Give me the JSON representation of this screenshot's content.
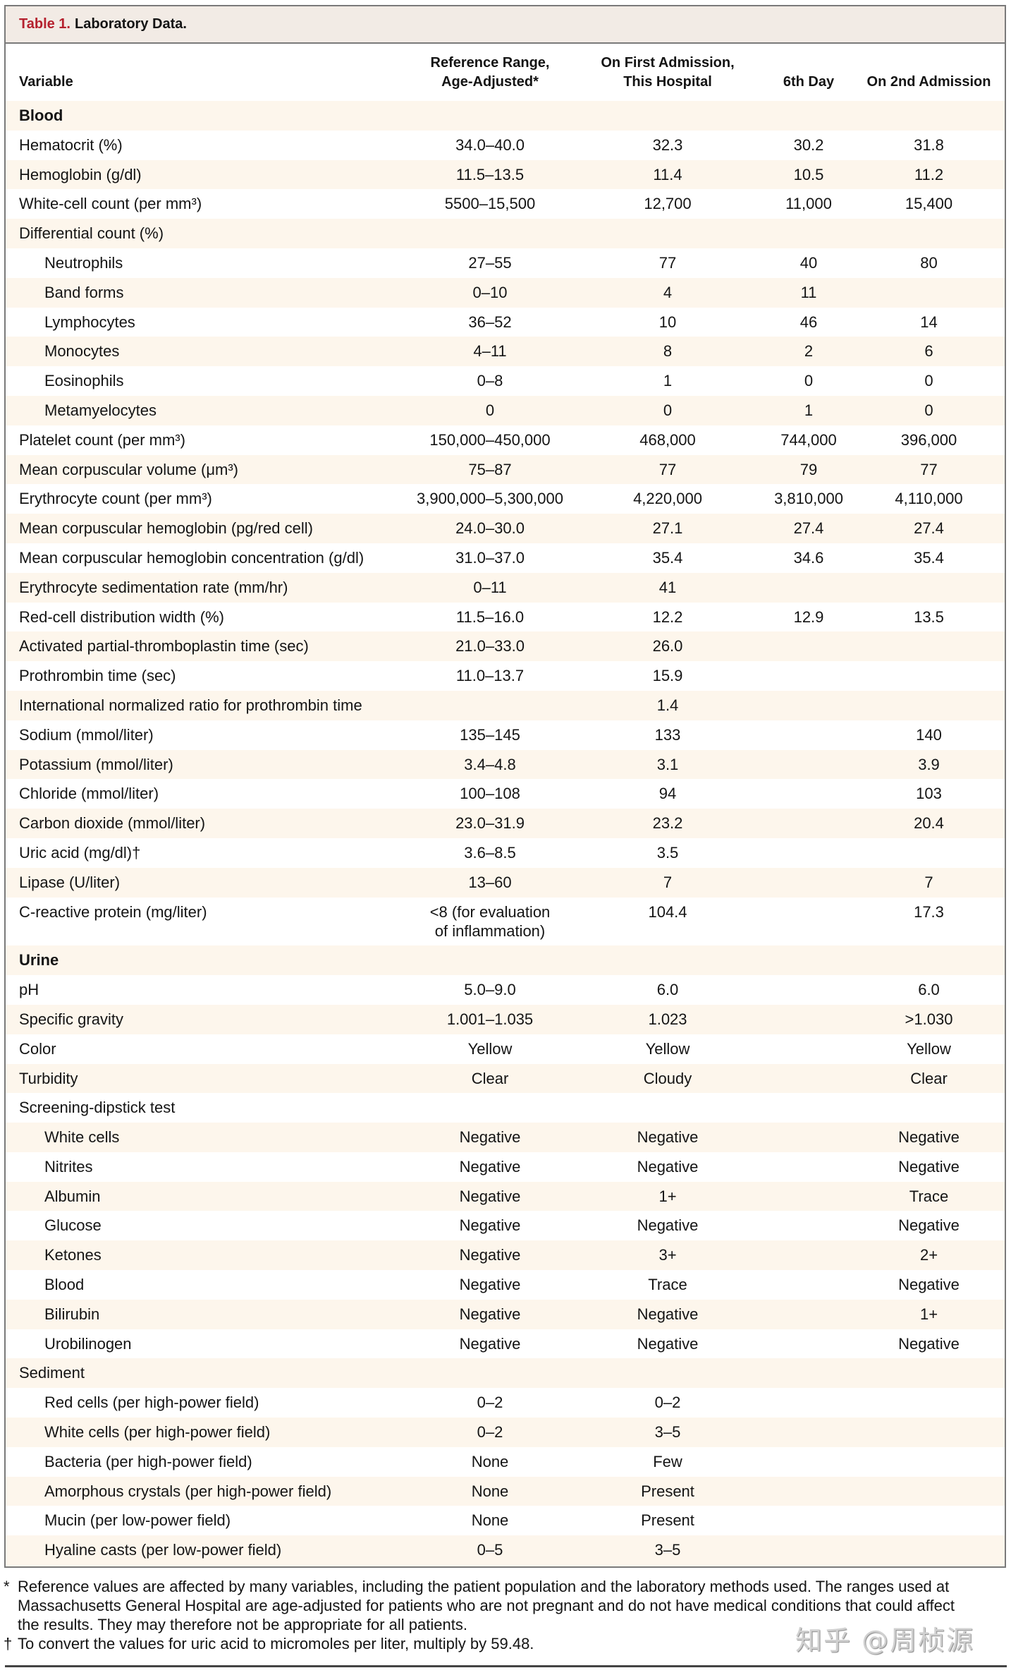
{
  "colors": {
    "accent": "#b5212e",
    "row_shade": "#fdf6ec",
    "title_bar": "#f2ebe5",
    "border": "#7a7a7a",
    "rule": "#444444"
  },
  "title": {
    "label": "Table 1.",
    "text": "Laboratory Data."
  },
  "table": {
    "columns": [
      {
        "line1": "",
        "line2": "Variable"
      },
      {
        "line1": "Reference Range,",
        "line2": "Age-Adjusted*"
      },
      {
        "line1": "On First Admission,",
        "line2": "This Hospital"
      },
      {
        "line1": "",
        "line2": "6th Day"
      },
      {
        "line1": "",
        "line2": "On 2nd Admission"
      }
    ],
    "rows": [
      {
        "type": "section",
        "indent": false,
        "variable": "Blood",
        "ref": "",
        "first": "",
        "day6": "",
        "second": ""
      },
      {
        "type": "item",
        "indent": false,
        "variable": "Hematocrit (%)",
        "ref": "34.0–40.0",
        "first": "32.3",
        "day6": "30.2",
        "second": "31.8"
      },
      {
        "type": "item",
        "indent": false,
        "variable": "Hemoglobin (g/dl)",
        "ref": "11.5–13.5",
        "first": "11.4",
        "day6": "10.5",
        "second": "11.2"
      },
      {
        "type": "item",
        "indent": false,
        "variable": "White-cell count (per mm³)",
        "ref": "5500–15,500",
        "first": "12,700",
        "day6": "11,000",
        "second": "15,400"
      },
      {
        "type": "group",
        "indent": false,
        "variable": "Differential count (%)",
        "ref": "",
        "first": "",
        "day6": "",
        "second": ""
      },
      {
        "type": "item",
        "indent": true,
        "variable": "Neutrophils",
        "ref": "27–55",
        "first": "77",
        "day6": "40",
        "second": "80"
      },
      {
        "type": "item",
        "indent": true,
        "variable": "Band forms",
        "ref": "0–10",
        "first": "4",
        "day6": "11",
        "second": ""
      },
      {
        "type": "item",
        "indent": true,
        "variable": "Lymphocytes",
        "ref": "36–52",
        "first": "10",
        "day6": "46",
        "second": "14"
      },
      {
        "type": "item",
        "indent": true,
        "variable": "Monocytes",
        "ref": "4–11",
        "first": "8",
        "day6": "2",
        "second": "6"
      },
      {
        "type": "item",
        "indent": true,
        "variable": "Eosinophils",
        "ref": "0–8",
        "first": "1",
        "day6": "0",
        "second": "0"
      },
      {
        "type": "item",
        "indent": true,
        "variable": "Metamyelocytes",
        "ref": "0",
        "first": "0",
        "day6": "1",
        "second": "0"
      },
      {
        "type": "item",
        "indent": false,
        "variable": "Platelet count (per mm³)",
        "ref": "150,000–450,000",
        "first": "468,000",
        "day6": "744,000",
        "second": "396,000"
      },
      {
        "type": "item",
        "indent": false,
        "variable": "Mean corpuscular volume (μm³)",
        "ref": "75–87",
        "first": "77",
        "day6": "79",
        "second": "77"
      },
      {
        "type": "item",
        "indent": false,
        "variable": "Erythrocyte count (per mm³)",
        "ref": "3,900,000–5,300,000",
        "first": "4,220,000",
        "day6": "3,810,000",
        "second": "4,110,000"
      },
      {
        "type": "item",
        "indent": false,
        "variable": "Mean corpuscular hemoglobin (pg/red cell)",
        "ref": "24.0–30.0",
        "first": "27.1",
        "day6": "27.4",
        "second": "27.4"
      },
      {
        "type": "item",
        "indent": false,
        "variable": "Mean corpuscular hemoglobin concentration (g/dl)",
        "ref": "31.0–37.0",
        "first": "35.4",
        "day6": "34.6",
        "second": "35.4"
      },
      {
        "type": "item",
        "indent": false,
        "variable": "Erythrocyte sedimentation rate (mm/hr)",
        "ref": "0–11",
        "first": "41",
        "day6": "",
        "second": ""
      },
      {
        "type": "item",
        "indent": false,
        "variable": "Red-cell distribution width (%)",
        "ref": "11.5–16.0",
        "first": "12.2",
        "day6": "12.9",
        "second": "13.5"
      },
      {
        "type": "item",
        "indent": false,
        "variable": "Activated partial-thromboplastin time (sec)",
        "ref": "21.0–33.0",
        "first": "26.0",
        "day6": "",
        "second": ""
      },
      {
        "type": "item",
        "indent": false,
        "variable": "Prothrombin time (sec)",
        "ref": "11.0–13.7",
        "first": "15.9",
        "day6": "",
        "second": ""
      },
      {
        "type": "item",
        "indent": false,
        "variable": "International normalized ratio for prothrombin time",
        "ref": "",
        "first": "1.4",
        "day6": "",
        "second": ""
      },
      {
        "type": "item",
        "indent": false,
        "variable": "Sodium (mmol/liter)",
        "ref": "135–145",
        "first": "133",
        "day6": "",
        "second": "140"
      },
      {
        "type": "item",
        "indent": false,
        "variable": "Potassium (mmol/liter)",
        "ref": "3.4–4.8",
        "first": "3.1",
        "day6": "",
        "second": "3.9"
      },
      {
        "type": "item",
        "indent": false,
        "variable": "Chloride (mmol/liter)",
        "ref": "100–108",
        "first": "94",
        "day6": "",
        "second": "103"
      },
      {
        "type": "item",
        "indent": false,
        "variable": "Carbon dioxide (mmol/liter)",
        "ref": "23.0–31.9",
        "first": "23.2",
        "day6": "",
        "second": "20.4"
      },
      {
        "type": "item",
        "indent": false,
        "variable": "Uric acid (mg/dl)†",
        "ref": "3.6–8.5",
        "first": "3.5",
        "day6": "",
        "second": ""
      },
      {
        "type": "item",
        "indent": false,
        "variable": "Lipase (U/liter)",
        "ref": "13–60",
        "first": "7",
        "day6": "",
        "second": "7"
      },
      {
        "type": "item",
        "indent": false,
        "variable": "C-reactive protein (mg/liter)",
        "ref": "<8 (for evaluation\nof inflammation)",
        "first": "104.4",
        "day6": "",
        "second": "17.3"
      },
      {
        "type": "section",
        "indent": false,
        "variable": "Urine",
        "ref": "",
        "first": "",
        "day6": "",
        "second": ""
      },
      {
        "type": "item",
        "indent": false,
        "variable": "pH",
        "ref": "5.0–9.0",
        "first": "6.0",
        "day6": "",
        "second": "6.0"
      },
      {
        "type": "item",
        "indent": false,
        "variable": "Specific gravity",
        "ref": "1.001–1.035",
        "first": "1.023",
        "day6": "",
        "second": ">1.030"
      },
      {
        "type": "item",
        "indent": false,
        "variable": "Color",
        "ref": "Yellow",
        "first": "Yellow",
        "day6": "",
        "second": "Yellow"
      },
      {
        "type": "item",
        "indent": false,
        "variable": "Turbidity",
        "ref": "Clear",
        "first": "Cloudy",
        "day6": "",
        "second": "Clear"
      },
      {
        "type": "group",
        "indent": false,
        "variable": "Screening-dipstick test",
        "ref": "",
        "first": "",
        "day6": "",
        "second": ""
      },
      {
        "type": "item",
        "indent": true,
        "variable": "White cells",
        "ref": "Negative",
        "first": "Negative",
        "day6": "",
        "second": "Negative"
      },
      {
        "type": "item",
        "indent": true,
        "variable": "Nitrites",
        "ref": "Negative",
        "first": "Negative",
        "day6": "",
        "second": "Negative"
      },
      {
        "type": "item",
        "indent": true,
        "variable": "Albumin",
        "ref": "Negative",
        "first": "1+",
        "day6": "",
        "second": "Trace"
      },
      {
        "type": "item",
        "indent": true,
        "variable": "Glucose",
        "ref": "Negative",
        "first": "Negative",
        "day6": "",
        "second": "Negative"
      },
      {
        "type": "item",
        "indent": true,
        "variable": "Ketones",
        "ref": "Negative",
        "first": "3+",
        "day6": "",
        "second": "2+"
      },
      {
        "type": "item",
        "indent": true,
        "variable": "Blood",
        "ref": "Negative",
        "first": "Trace",
        "day6": "",
        "second": "Negative"
      },
      {
        "type": "item",
        "indent": true,
        "variable": "Bilirubin",
        "ref": "Negative",
        "first": "Negative",
        "day6": "",
        "second": "1+"
      },
      {
        "type": "item",
        "indent": true,
        "variable": "Urobilinogen",
        "ref": "Negative",
        "first": "Negative",
        "day6": "",
        "second": "Negative"
      },
      {
        "type": "group",
        "indent": false,
        "variable": "Sediment",
        "ref": "",
        "first": "",
        "day6": "",
        "second": ""
      },
      {
        "type": "item",
        "indent": true,
        "variable": "Red cells (per high-power field)",
        "ref": "0–2",
        "first": "0–2",
        "day6": "",
        "second": ""
      },
      {
        "type": "item",
        "indent": true,
        "variable": "White cells (per high-power field)",
        "ref": "0–2",
        "first": "3–5",
        "day6": "",
        "second": ""
      },
      {
        "type": "item",
        "indent": true,
        "variable": "Bacteria (per high-power field)",
        "ref": "None",
        "first": "Few",
        "day6": "",
        "second": ""
      },
      {
        "type": "item",
        "indent": true,
        "variable": "Amorphous crystals (per high-power field)",
        "ref": "None",
        "first": "Present",
        "day6": "",
        "second": ""
      },
      {
        "type": "item",
        "indent": true,
        "variable": "Mucin (per low-power field)",
        "ref": "None",
        "first": "Present",
        "day6": "",
        "second": ""
      },
      {
        "type": "item",
        "indent": true,
        "variable": "Hyaline casts (per low-power field)",
        "ref": "0–5",
        "first": "3–5",
        "day6": "",
        "second": ""
      }
    ]
  },
  "footnotes": [
    {
      "mark": "*",
      "lines": [
        "Reference values are affected by many variables, including the patient population and the laboratory methods used. The ranges used at",
        "Massachusetts General Hospital are age-adjusted for patients who are not pregnant and do not have medical conditions that could affect",
        "the results. They may therefore not be appropriate for all patients."
      ]
    },
    {
      "mark": "†",
      "lines": [
        "To convert the values for uric acid to micromoles per liter, multiply by 59.48."
      ]
    }
  ],
  "watermark": {
    "text": "知乎 @周桢源"
  }
}
